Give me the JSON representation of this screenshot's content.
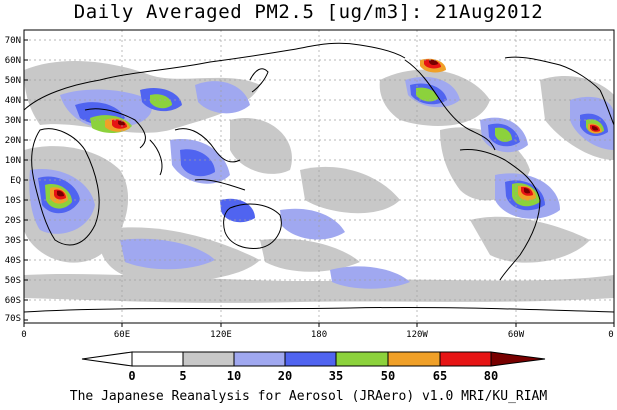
{
  "title": "Daily Averaged PM2.5 [ug/m3]: 21Aug2012",
  "footer": "The Japanese Reanalysis for Aerosol (JRAero) v1.0 MRI/KU_RIAM",
  "lat_labels": [
    "70N",
    "60N",
    "50N",
    "40N",
    "30N",
    "20N",
    "10N",
    "EQ",
    "10S",
    "20S",
    "30S",
    "40S",
    "50S",
    "60S",
    "70S"
  ],
  "lon_labels": [
    "0",
    "60E",
    "120E",
    "180",
    "120W",
    "60W",
    "0"
  ],
  "colorbar": {
    "levels": [
      "0",
      "5",
      "10",
      "20",
      "35",
      "50",
      "65",
      "80"
    ],
    "colors": [
      "#ffffff",
      "#c8c8c8",
      "#a0a8f0",
      "#5064f0",
      "#8cd23c",
      "#f0a028",
      "#e61414",
      "#780000"
    ]
  },
  "map_colors": {
    "land_outline": "#000000",
    "grid": "#a0a0a0",
    "frame": "#000000"
  }
}
